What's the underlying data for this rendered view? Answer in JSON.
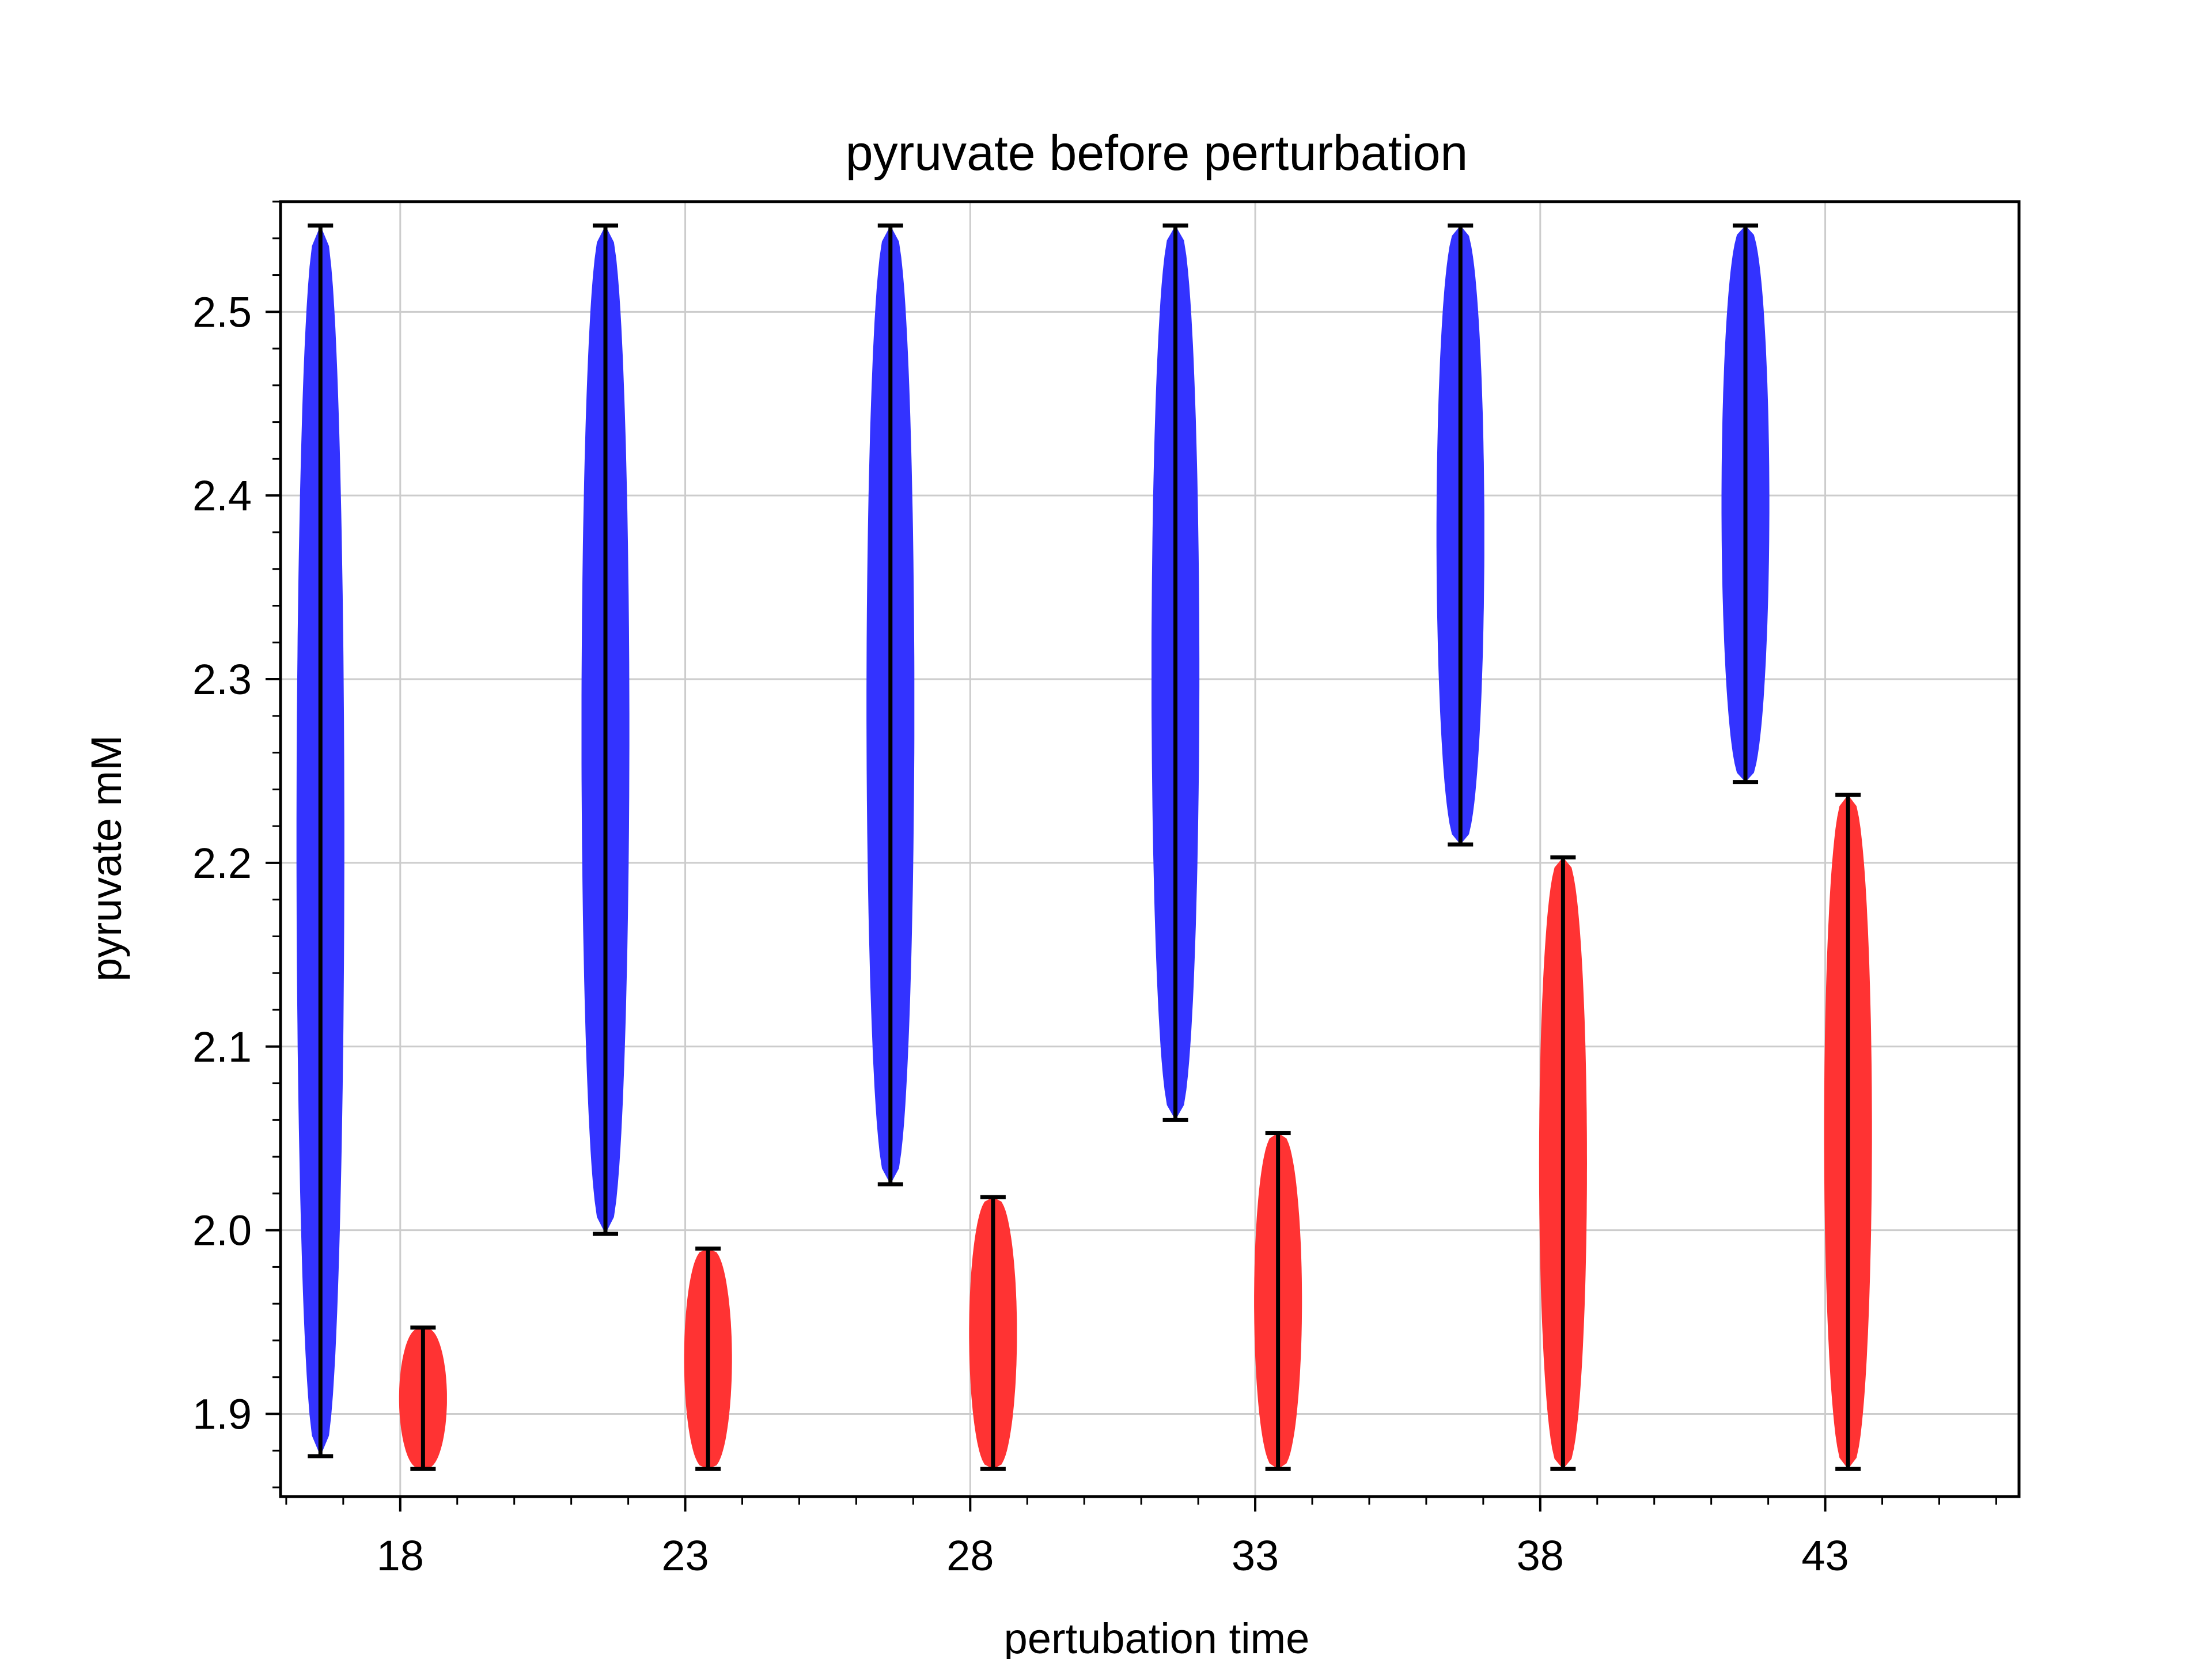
{
  "chart_data": {
    "type": "violin",
    "title": "pyruvate before perturbation",
    "xlabel": "pertubation time",
    "ylabel": "pyruvate mM",
    "xlim": [
      15.9,
      46.4
    ],
    "ylim": [
      1.855,
      2.56
    ],
    "xticks": [
      18,
      23,
      28,
      33,
      38,
      43
    ],
    "yticks": [
      1.9,
      2.0,
      2.1,
      2.2,
      2.3,
      2.4,
      2.5
    ],
    "grid": true,
    "legend": "none",
    "series": [
      {
        "color": "#3333ff",
        "violins": [
          {
            "x": 16.6,
            "min": 1.877,
            "max": 2.547,
            "half_width": 0.42
          },
          {
            "x": 21.6,
            "min": 1.998,
            "max": 2.547,
            "half_width": 0.42
          },
          {
            "x": 26.6,
            "min": 2.025,
            "max": 2.547,
            "half_width": 0.42
          },
          {
            "x": 31.6,
            "min": 2.06,
            "max": 2.547,
            "half_width": 0.42
          },
          {
            "x": 36.6,
            "min": 2.21,
            "max": 2.547,
            "half_width": 0.42
          },
          {
            "x": 41.6,
            "min": 2.244,
            "max": 2.547,
            "half_width": 0.42
          }
        ]
      },
      {
        "color": "#ff3333",
        "violins": [
          {
            "x": 18.4,
            "min": 1.87,
            "max": 1.947,
            "half_width": 0.42
          },
          {
            "x": 23.4,
            "min": 1.87,
            "max": 1.99,
            "half_width": 0.42
          },
          {
            "x": 28.4,
            "min": 1.87,
            "max": 2.018,
            "half_width": 0.42
          },
          {
            "x": 33.4,
            "min": 1.87,
            "max": 2.053,
            "half_width": 0.42
          },
          {
            "x": 38.4,
            "min": 1.87,
            "max": 2.203,
            "half_width": 0.42
          },
          {
            "x": 43.4,
            "min": 1.87,
            "max": 2.237,
            "half_width": 0.42
          }
        ]
      }
    ]
  }
}
